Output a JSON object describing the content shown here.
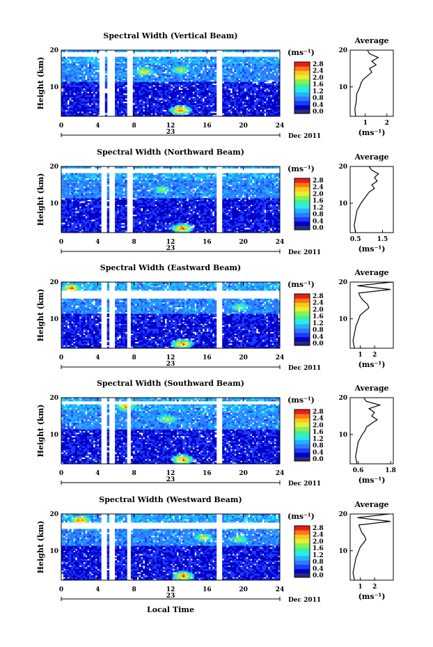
{
  "figure": {
    "xlabel": "Local Time",
    "date_label": "Dec 2011",
    "day_label": "23"
  },
  "colorbar": {
    "unit": "(ms⁻¹)",
    "ticks": [
      "0.0",
      "0.4",
      "0.8",
      "1.2",
      "1.6",
      "2.0",
      "2.4",
      "2.8"
    ],
    "colors": [
      "#2a2a7a",
      "#0000c8",
      "#1e3cff",
      "#2e7bff",
      "#21b4ff",
      "#2ee8e8",
      "#3cf0a0",
      "#8cf050",
      "#e6f032",
      "#ffc81e",
      "#ff7814",
      "#e61e1e"
    ]
  },
  "chart_data": [
    {
      "type": "heatmap",
      "title": "Spectral Width (Vertical Beam)",
      "ylabel": "Height (km)",
      "xlim": [
        0,
        24
      ],
      "ylim": [
        2,
        20
      ],
      "xticks": [
        0,
        4,
        8,
        12,
        16,
        20,
        24
      ],
      "yticks": [
        10,
        20
      ],
      "gaps_hours": [
        [
          4.3,
          4.8
        ],
        [
          5.2,
          5.8
        ],
        [
          7.4,
          7.7
        ],
        [
          17.2,
          17.6
        ]
      ],
      "top_gap_km": [
        18.5,
        19.2
      ],
      "hotspots": [
        {
          "t": 13.0,
          "h": 3.5,
          "v": 2.8
        },
        {
          "t": 9.0,
          "h": 14.0,
          "v": 2.4
        },
        {
          "t": 13.0,
          "h": 14.5,
          "v": 2.2
        }
      ],
      "seed": 11,
      "average": {
        "title": "Average",
        "xlabel": "(ms⁻¹)",
        "xlim": [
          0.3,
          2.3
        ],
        "xticks": [
          1,
          2
        ],
        "h": [
          2,
          4,
          6,
          8,
          10,
          11,
          12,
          13,
          14,
          15,
          16,
          17,
          18,
          19,
          20
        ],
        "v": [
          0.55,
          0.52,
          0.58,
          0.6,
          0.75,
          0.8,
          0.9,
          1.1,
          1.3,
          1.2,
          1.5,
          1.3,
          1.6,
          1.2,
          1.1
        ]
      }
    },
    {
      "type": "heatmap",
      "title": "Spectral Width (Northward Beam)",
      "ylabel": "Height (km)",
      "xlim": [
        0,
        24
      ],
      "ylim": [
        2,
        20
      ],
      "xticks": [
        0,
        4,
        8,
        12,
        16,
        20,
        24
      ],
      "yticks": [
        10,
        20
      ],
      "gaps_hours": [
        [
          4.4,
          4.9
        ],
        [
          5.3,
          5.8
        ],
        [
          7.3,
          7.7
        ],
        [
          17.2,
          17.6
        ]
      ],
      "top_gap_km": [
        18.6,
        19.3
      ],
      "hotspots": [
        {
          "t": 13.2,
          "h": 3.0,
          "v": 2.8
        },
        {
          "t": 11.0,
          "h": 13.5,
          "v": 2.0
        }
      ],
      "seed": 23,
      "average": {
        "title": "Average",
        "xlabel": "(ms⁻¹)",
        "xlim": [
          0.3,
          1.9
        ],
        "xticks": [
          0.5,
          1.5
        ],
        "h": [
          2,
          4,
          6,
          8,
          10,
          11,
          12,
          13,
          14,
          15,
          16,
          17,
          18,
          19,
          20
        ],
        "v": [
          0.5,
          0.45,
          0.5,
          0.55,
          0.7,
          0.8,
          0.9,
          1.0,
          1.2,
          1.1,
          1.3,
          1.2,
          1.35,
          1.1,
          1.0
        ]
      }
    },
    {
      "type": "heatmap",
      "title": "Spectral Width (Eastward Beam)",
      "ylabel": "Height (km)",
      "xlim": [
        0,
        24
      ],
      "ylim": [
        2,
        20
      ],
      "xticks": [
        0,
        4,
        8,
        12,
        16,
        20,
        24
      ],
      "yticks": [
        10,
        20
      ],
      "gaps_hours": [
        [
          4.4,
          4.9
        ],
        [
          5.4,
          5.8
        ],
        [
          7.2,
          7.6
        ],
        [
          17.2,
          17.6
        ]
      ],
      "top_gap_km": [
        15.5,
        17.6
      ],
      "hotspots": [
        {
          "t": 13.2,
          "h": 3.0,
          "v": 2.8
        },
        {
          "t": 19.5,
          "h": 13.0,
          "v": 2.0
        },
        {
          "t": 1.0,
          "h": 18.2,
          "v": 2.8
        }
      ],
      "seed": 37,
      "average": {
        "title": "Average",
        "xlabel": "(ms⁻¹)",
        "xlim": [
          0.3,
          3.3
        ],
        "xticks": [
          1,
          2
        ],
        "h": [
          2,
          4,
          6,
          8,
          10,
          11,
          12,
          13,
          14,
          15,
          16,
          17,
          18,
          19,
          20
        ],
        "v": [
          0.6,
          0.5,
          0.6,
          0.7,
          0.9,
          1.0,
          1.3,
          1.6,
          1.5,
          1.2,
          1.0,
          0.9,
          3.1,
          0.8,
          3.2
        ]
      }
    },
    {
      "type": "heatmap",
      "title": "Spectral Width (Southward Beam)",
      "ylabel": "Height (km)",
      "xlim": [
        0,
        24
      ],
      "ylim": [
        2,
        20
      ],
      "xticks": [
        0,
        4,
        8,
        12,
        16,
        20,
        24
      ],
      "yticks": [
        10,
        20
      ],
      "gaps_hours": [
        [
          4.4,
          4.9
        ],
        [
          5.3,
          5.7
        ],
        [
          7.3,
          7.6
        ],
        [
          17.2,
          17.6
        ]
      ],
      "top_gap_km": [
        18.3,
        19.0
      ],
      "hotspots": [
        {
          "t": 13.2,
          "h": 3.0,
          "v": 2.8
        },
        {
          "t": 11.5,
          "h": 14.0,
          "v": 2.2
        },
        {
          "t": 7.0,
          "h": 17.5,
          "v": 2.6
        }
      ],
      "seed": 53,
      "average": {
        "title": "Average",
        "xlabel": "(ms⁻¹)",
        "xlim": [
          0.3,
          1.9
        ],
        "xticks": [
          0.6,
          1.8
        ],
        "h": [
          2,
          4,
          6,
          8,
          10,
          11,
          12,
          13,
          14,
          15,
          16,
          17,
          18,
          19,
          20
        ],
        "v": [
          0.55,
          0.5,
          0.55,
          0.6,
          0.75,
          0.85,
          0.9,
          1.1,
          1.3,
          1.1,
          1.2,
          1.0,
          1.4,
          0.9,
          0.8
        ]
      }
    },
    {
      "type": "heatmap",
      "title": "Spectral Width (Westward Beam)",
      "ylabel": "Height (km)",
      "xlim": [
        0,
        24
      ],
      "ylim": [
        2,
        20
      ],
      "xticks": [
        0,
        4,
        8,
        12,
        16,
        20,
        24
      ],
      "yticks": [
        10,
        20
      ],
      "gaps_hours": [
        [
          4.4,
          4.9
        ],
        [
          5.3,
          5.7
        ],
        [
          7.3,
          7.6
        ],
        [
          17.2,
          17.6
        ]
      ],
      "top_gap_km": [
        16.0,
        17.4
      ],
      "hotspots": [
        {
          "t": 13.3,
          "h": 3.0,
          "v": 2.8
        },
        {
          "t": 15.5,
          "h": 13.5,
          "v": 2.2
        },
        {
          "t": 19.5,
          "h": 13.0,
          "v": 2.0
        },
        {
          "t": 2.0,
          "h": 18.2,
          "v": 2.8
        }
      ],
      "seed": 71,
      "average": {
        "title": "Average",
        "xlabel": "(ms⁻¹)",
        "xlim": [
          0.3,
          3.3
        ],
        "xticks": [
          1,
          2
        ],
        "h": [
          2,
          4,
          6,
          8,
          10,
          11,
          12,
          13,
          14,
          15,
          16,
          17,
          18,
          19,
          20
        ],
        "v": [
          0.6,
          0.5,
          0.6,
          0.7,
          0.9,
          1.0,
          1.2,
          1.4,
          1.3,
          1.1,
          1.0,
          0.9,
          3.1,
          0.8,
          3.0
        ]
      }
    }
  ]
}
